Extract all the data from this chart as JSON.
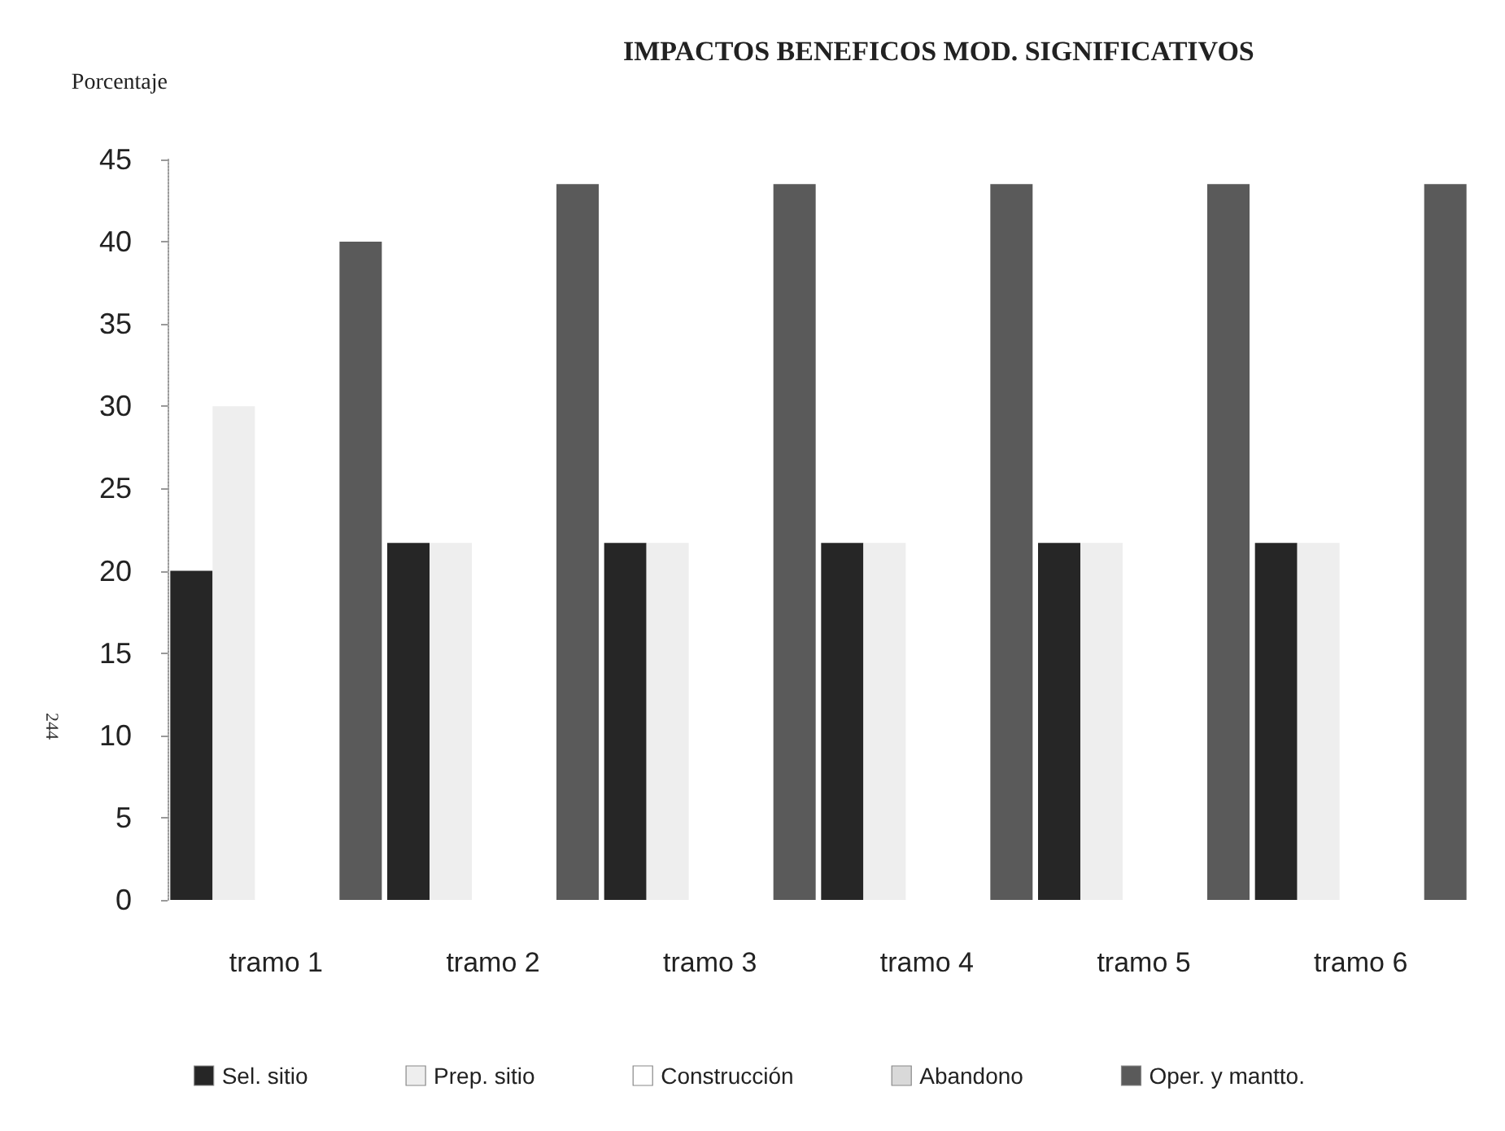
{
  "chart_data": {
    "type": "bar",
    "title": "IMPACTOS BENEFICOS MOD. SIGNIFICATIVOS",
    "ylabel": "Porcentaje",
    "annotations": [
      "244"
    ],
    "categories": [
      "tramo 1",
      "tramo 2",
      "tramo 3",
      "tramo 4",
      "tramo 5",
      "tramo 6"
    ],
    "series": [
      {
        "name": "Sel. sitio",
        "color": "#262626",
        "values": [
          20,
          21.7,
          21.7,
          21.7,
          21.7,
          21.7
        ]
      },
      {
        "name": "Prep. sitio",
        "color": "#eeeeee",
        "values": [
          30,
          21.7,
          21.7,
          21.7,
          21.7,
          21.7
        ]
      },
      {
        "name": "Construcción",
        "color": "#ffffff",
        "values": [
          0,
          0,
          0,
          0,
          0,
          0
        ]
      },
      {
        "name": "Abandono",
        "color": "#d9d9d9",
        "values": [
          0,
          0,
          0,
          0,
          0,
          0
        ]
      },
      {
        "name": "Oper. y mantto.",
        "color": "#5a5a5a",
        "values": [
          40,
          43.5,
          43.5,
          43.5,
          43.5,
          43.5
        ]
      }
    ],
    "ylim": [
      0,
      45
    ],
    "yticks": [
      0,
      5,
      10,
      15,
      20,
      25,
      30,
      35,
      40,
      45
    ],
    "grid": false,
    "legend": "bottom"
  }
}
